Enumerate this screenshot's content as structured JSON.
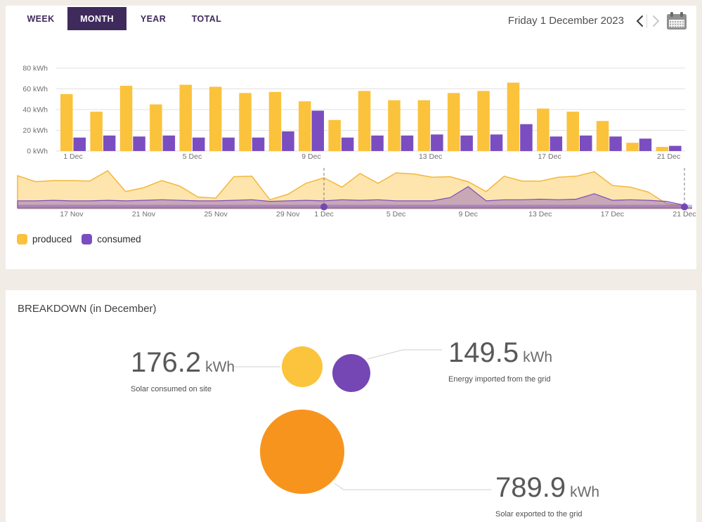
{
  "colors": {
    "page_background": "#F1EDE6",
    "panel_background": "#FFFFFF",
    "tab_active_background": "#3F2A5C",
    "produced": "#FBC23C",
    "consumed": "#7A4EC0",
    "bubble_yellow": "#FBC43C",
    "bubble_purple": "#7447B4",
    "bubble_orange": "#F7941E",
    "gridline": "#E0E0E0",
    "area_produced_fill": "rgba(251,194,60,0.42)",
    "area_produced_stroke": "#F3B73A",
    "area_consumed_fill": "rgba(122,78,192,0.40)",
    "connector_line": "#CFCFCF"
  },
  "header": {
    "tabs": [
      {
        "label": "WEEK",
        "active": false
      },
      {
        "label": "MONTH",
        "active": true
      },
      {
        "label": "YEAR",
        "active": false
      },
      {
        "label": "TOTAL",
        "active": false
      }
    ],
    "date_label": "Friday 1 December 2023",
    "prev_enabled": true,
    "next_enabled": false
  },
  "legend": {
    "items": [
      {
        "label": "produced",
        "color": "#FBC23C"
      },
      {
        "label": "consumed",
        "color": "#7A4EC0"
      }
    ]
  },
  "chart_data": [
    {
      "type": "bar",
      "categories": [
        "1 Dec",
        "2 Dec",
        "3 Dec",
        "4 Dec",
        "5 Dec",
        "6 Dec",
        "7 Dec",
        "8 Dec",
        "9 Dec",
        "10 Dec",
        "11 Dec",
        "12 Dec",
        "13 Dec",
        "14 Dec",
        "15 Dec",
        "16 Dec",
        "17 Dec",
        "18 Dec",
        "19 Dec",
        "20 Dec",
        "21 Dec"
      ],
      "series": [
        {
          "name": "produced",
          "values": [
            55,
            38,
            63,
            45,
            64,
            62,
            56,
            57,
            48,
            30,
            58,
            49,
            49,
            56,
            58,
            66,
            41,
            38,
            29,
            8,
            4
          ]
        },
        {
          "name": "consumed",
          "values": [
            13,
            15,
            14,
            15,
            13,
            13,
            13,
            19,
            39,
            13,
            15,
            15,
            16,
            15,
            16,
            26,
            14,
            15,
            14,
            12,
            5
          ]
        }
      ],
      "y_unit": "kWh",
      "y_ticks": [
        0,
        20,
        40,
        60,
        80
      ],
      "ylim": [
        0,
        80
      ],
      "x_ticks_shown": [
        "1 Dec",
        "5 Dec",
        "9 Dec",
        "13 Dec",
        "17 Dec",
        "21 Dec"
      ],
      "grid": true
    },
    {
      "type": "area",
      "x": [
        "14 Nov",
        "15 Nov",
        "16 Nov",
        "17 Nov",
        "18 Nov",
        "19 Nov",
        "20 Nov",
        "21 Nov",
        "22 Nov",
        "23 Nov",
        "24 Nov",
        "25 Nov",
        "26 Nov",
        "27 Nov",
        "28 Nov",
        "29 Nov",
        "30 Nov",
        "1 Dec",
        "2 Dec",
        "3 Dec",
        "4 Dec",
        "5 Dec",
        "6 Dec",
        "7 Dec",
        "8 Dec",
        "9 Dec",
        "10 Dec",
        "11 Dec",
        "12 Dec",
        "13 Dec",
        "14 Dec",
        "15 Dec",
        "16 Dec",
        "17 Dec",
        "18 Dec",
        "19 Dec",
        "20 Dec",
        "21 Dec"
      ],
      "series": [
        {
          "name": "produced",
          "values": [
            59,
            48,
            50,
            50,
            49,
            68,
            30,
            37,
            50,
            40,
            20,
            18,
            57,
            58,
            15,
            25,
            45,
            55,
            38,
            63,
            45,
            64,
            62,
            56,
            57,
            48,
            30,
            58,
            49,
            49,
            56,
            58,
            66,
            41,
            38,
            29,
            8,
            4
          ]
        },
        {
          "name": "consumed",
          "values": [
            13,
            13,
            14,
            13,
            13,
            14,
            13,
            14,
            15,
            14,
            13,
            13,
            14,
            15,
            12,
            13,
            14,
            13,
            15,
            14,
            15,
            13,
            13,
            13,
            19,
            39,
            13,
            15,
            15,
            16,
            15,
            16,
            26,
            14,
            15,
            14,
            12,
            5
          ]
        }
      ],
      "x_ticks_shown": [
        "17 Nov",
        "21 Nov",
        "25 Nov",
        "29 Nov",
        "1 Dec",
        "5 Dec",
        "9 Dec",
        "13 Dec",
        "17 Dec",
        "21 Dec"
      ],
      "selection": {
        "start": "1 Dec",
        "end": "21 Dec"
      }
    },
    {
      "type": "bubble",
      "bubbles": [
        {
          "label": "Solar consumed on site",
          "value": "176.2",
          "unit": "kWh",
          "color": "#FBC43C"
        },
        {
          "label": "Energy imported from the grid",
          "value": "149.5",
          "unit": "kWh",
          "color": "#7447B4"
        },
        {
          "label": "Solar exported to the grid",
          "value": "789.9",
          "unit": "kWh",
          "color": "#F7941E"
        }
      ]
    }
  ],
  "breakdown": {
    "title": "BREAKDOWN (in December)",
    "stats": [
      {
        "value": "176.2",
        "unit": "kWh",
        "label": "Solar consumed on site"
      },
      {
        "value": "149.5",
        "unit": "kWh",
        "label": "Energy imported from the grid"
      },
      {
        "value": "789.9",
        "unit": "kWh",
        "label": "Solar exported to the grid"
      }
    ]
  }
}
